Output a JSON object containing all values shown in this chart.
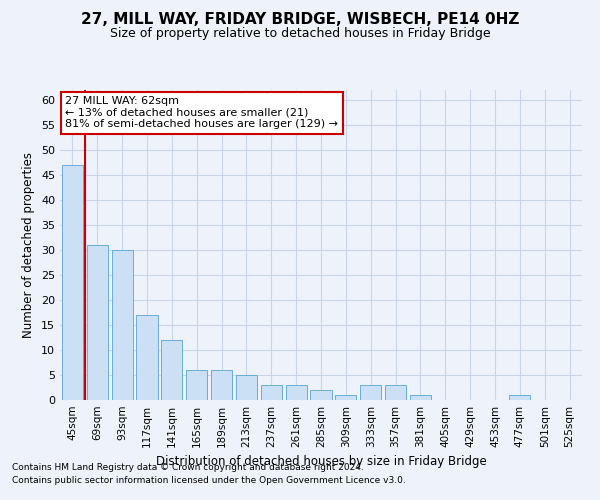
{
  "title": "27, MILL WAY, FRIDAY BRIDGE, WISBECH, PE14 0HZ",
  "subtitle": "Size of property relative to detached houses in Friday Bridge",
  "xlabel": "Distribution of detached houses by size in Friday Bridge",
  "ylabel": "Number of detached properties",
  "footer1": "Contains HM Land Registry data © Crown copyright and database right 2024.",
  "footer2": "Contains public sector information licensed under the Open Government Licence v3.0.",
  "categories": [
    "45sqm",
    "69sqm",
    "93sqm",
    "117sqm",
    "141sqm",
    "165sqm",
    "189sqm",
    "213sqm",
    "237sqm",
    "261sqm",
    "285sqm",
    "309sqm",
    "333sqm",
    "357sqm",
    "381sqm",
    "405sqm",
    "429sqm",
    "453sqm",
    "477sqm",
    "501sqm",
    "525sqm"
  ],
  "values": [
    47,
    31,
    30,
    17,
    12,
    6,
    6,
    5,
    3,
    3,
    2,
    1,
    3,
    3,
    1,
    0,
    0,
    0,
    1,
    0,
    0
  ],
  "bar_color": "#cce0f5",
  "bar_edge_color": "#6aaed6",
  "grid_color": "#c8d4e8",
  "annotation_text_line1": "27 MILL WAY: 62sqm",
  "annotation_text_line2": "← 13% of detached houses are smaller (21)",
  "annotation_text_line3": "81% of semi-detached houses are larger (129) →",
  "annotation_box_color": "#ffffff",
  "annotation_box_edge": "#cc0000",
  "property_line_color": "#cc0000",
  "ylim_max": 62,
  "yticks": [
    0,
    5,
    10,
    15,
    20,
    25,
    30,
    35,
    40,
    45,
    50,
    55,
    60
  ],
  "title_fontsize": 11,
  "subtitle_fontsize": 9,
  "axis_label_fontsize": 8.5,
  "tick_fontsize": 8,
  "background_color": "#eef2fa"
}
